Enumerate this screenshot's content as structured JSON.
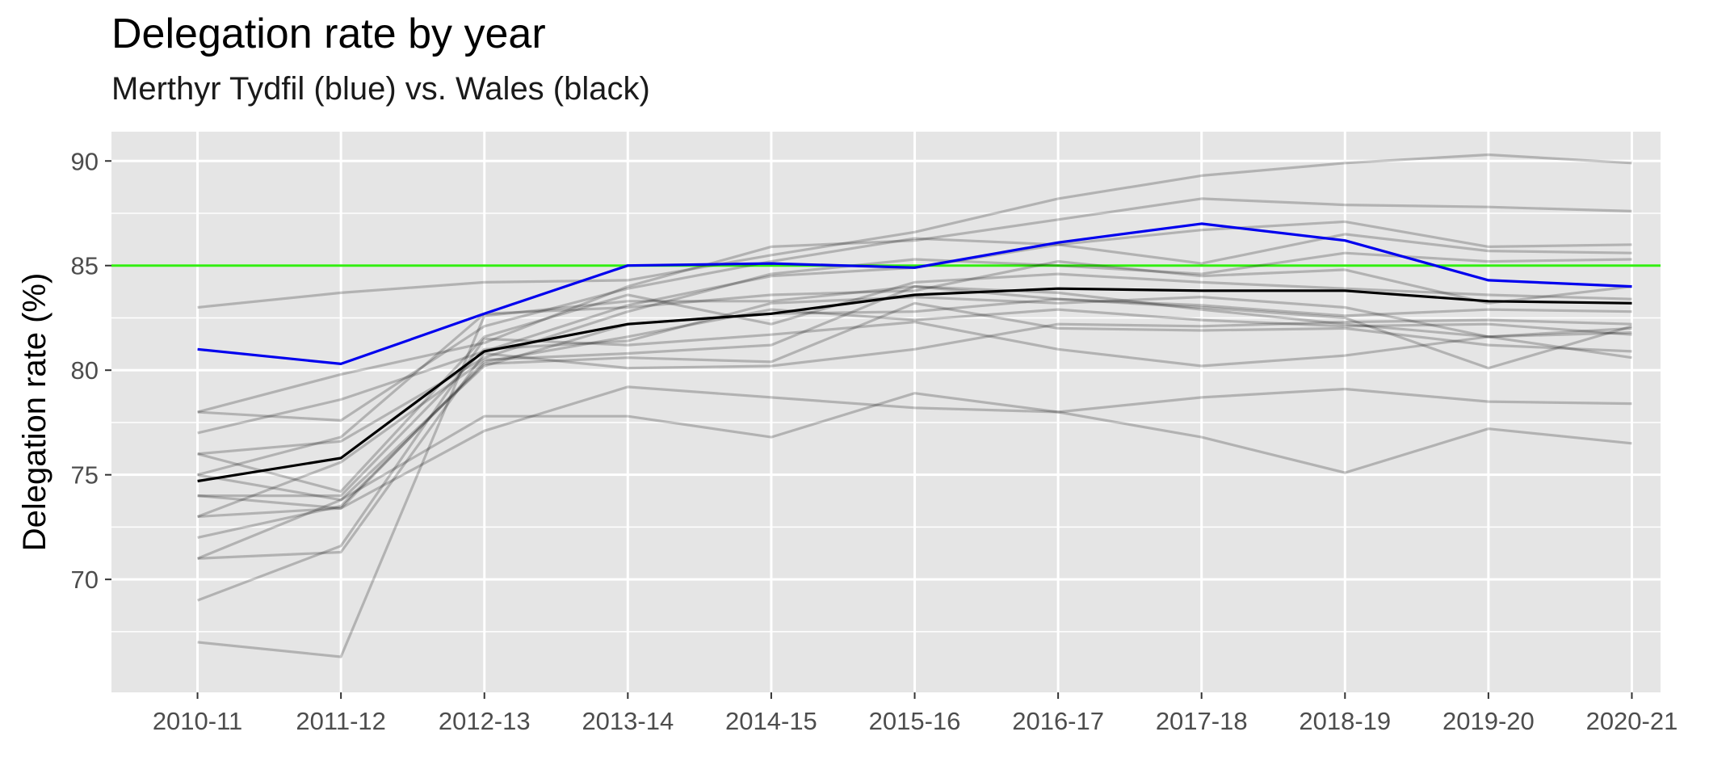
{
  "chart_data": {
    "type": "line",
    "title": "Delegation rate by year",
    "subtitle": "Merthyr Tydfil (blue) vs. Wales (black)",
    "xlabel": "",
    "ylabel": "Delegation rate (%)",
    "categories": [
      "2010-11",
      "2011-12",
      "2012-13",
      "2013-14",
      "2014-15",
      "2015-16",
      "2016-17",
      "2017-18",
      "2018-19",
      "2019-20",
      "2020-21"
    ],
    "ylim": [
      64.6,
      91.4
    ],
    "yticks": [
      70,
      75,
      80,
      85,
      90
    ],
    "grid": true,
    "reference_line": {
      "y": 85,
      "color": "#33ee11"
    },
    "colors": {
      "panel": "#e5e5e5",
      "grid": "#ffffff",
      "other_series": "#000000",
      "highlight": "#0000ee",
      "average": "#000000"
    },
    "highlight": {
      "values": [
        81.0,
        80.3,
        82.7,
        85.0,
        85.1,
        84.9,
        86.1,
        87.0,
        86.2,
        84.3,
        84.0
      ]
    },
    "average": {
      "values": [
        74.7,
        75.8,
        80.9,
        82.2,
        82.7,
        83.6,
        83.9,
        83.8,
        83.8,
        83.3,
        83.2
      ]
    },
    "other_series": [
      {
        "values": [
          83.0,
          83.7,
          84.2,
          84.3,
          85.5,
          86.6,
          88.2,
          89.3,
          89.9,
          90.3,
          89.9
        ]
      },
      {
        "values": [
          78.0,
          79.8,
          81.3,
          84.0,
          85.9,
          86.2,
          87.2,
          88.2,
          87.9,
          87.8,
          87.6
        ]
      },
      {
        "values": [
          78.0,
          77.6,
          82.1,
          83.9,
          85.2,
          86.3,
          86.0,
          86.7,
          87.1,
          85.9,
          86.0
        ]
      },
      {
        "values": [
          77.0,
          78.6,
          80.9,
          83.1,
          84.5,
          84.9,
          86.0,
          85.1,
          86.5,
          85.7,
          85.6
        ]
      },
      {
        "values": [
          76.0,
          76.6,
          80.6,
          82.8,
          84.6,
          85.3,
          85.0,
          84.6,
          85.6,
          85.2,
          85.3
        ]
      },
      {
        "values": [
          75.0,
          76.8,
          82.7,
          83.0,
          83.6,
          83.8,
          85.2,
          84.5,
          84.8,
          83.2,
          84.0
        ]
      },
      {
        "values": [
          76.0,
          74.2,
          81.6,
          83.6,
          82.2,
          84.2,
          84.6,
          84.2,
          83.9,
          83.6,
          83.4
        ]
      },
      {
        "values": [
          74.0,
          74.0,
          81.0,
          81.4,
          83.2,
          83.5,
          83.2,
          83.5,
          83.0,
          81.6,
          82.0
        ]
      },
      {
        "values": [
          75.0,
          73.8,
          80.2,
          82.2,
          82.7,
          82.8,
          83.4,
          83.1,
          82.6,
          82.9,
          82.8
        ]
      },
      {
        "values": [
          73.0,
          75.6,
          80.5,
          80.8,
          81.2,
          84.0,
          83.7,
          82.9,
          82.2,
          81.6,
          81.8
        ]
      },
      {
        "values": [
          73.0,
          73.4,
          80.4,
          81.6,
          82.9,
          82.4,
          82.9,
          82.4,
          82.1,
          82.2,
          81.7
        ]
      },
      {
        "values": [
          72.0,
          73.5,
          80.3,
          80.6,
          80.4,
          83.2,
          82.0,
          81.9,
          82.0,
          81.2,
          80.9
        ]
      },
      {
        "values": [
          71.0,
          71.3,
          80.8,
          80.1,
          80.2,
          81.0,
          82.2,
          82.1,
          82.3,
          82.4,
          82.2
        ]
      },
      {
        "values": [
          69.0,
          71.6,
          81.5,
          81.2,
          81.7,
          82.3,
          81.0,
          80.2,
          80.7,
          81.6,
          80.6
        ]
      },
      {
        "values": [
          67.0,
          66.3,
          82.6,
          83.3,
          83.3,
          84.0,
          83.4,
          83.0,
          82.5,
          80.1,
          82.1
        ]
      },
      {
        "values": [
          71.0,
          73.8,
          77.8,
          77.8,
          76.8,
          78.9,
          78.0,
          78.7,
          79.1,
          78.5,
          78.4
        ]
      },
      {
        "values": [
          74.0,
          73.4,
          77.1,
          79.2,
          78.7,
          78.2,
          78.0,
          76.8,
          75.1,
          77.2,
          76.5
        ]
      }
    ]
  }
}
